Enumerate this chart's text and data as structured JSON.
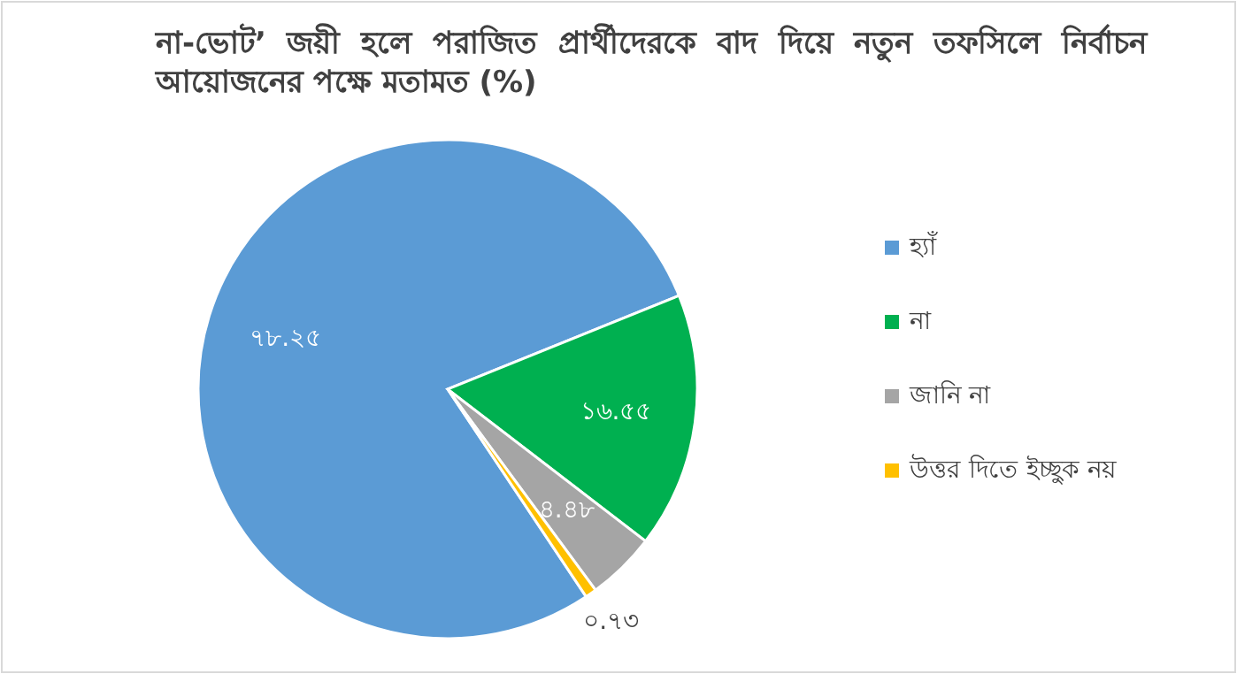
{
  "chart_data": {
    "type": "pie",
    "title": "না-ভোট’ জয়ী হলে পরাজিত প্রার্থীদেরকে বাদ দিয়ে নতুন তফসিলে নির্বাচন আয়োজনের পক্ষে মতামত (%)",
    "categories": [
      "হ্যাঁ",
      "না",
      "জানি না",
      "উত্তর দিতে ইচ্ছুক নয়"
    ],
    "values": [
      78.25,
      16.55,
      4.48,
      0.73
    ],
    "value_labels": [
      "৭৮.২৫",
      "১৬.৫৫",
      "৪.৪৮",
      "০.৭৩"
    ],
    "colors": [
      "#5b9bd5",
      "#00b050",
      "#a5a5a5",
      "#ffc000"
    ],
    "legend": "right"
  }
}
